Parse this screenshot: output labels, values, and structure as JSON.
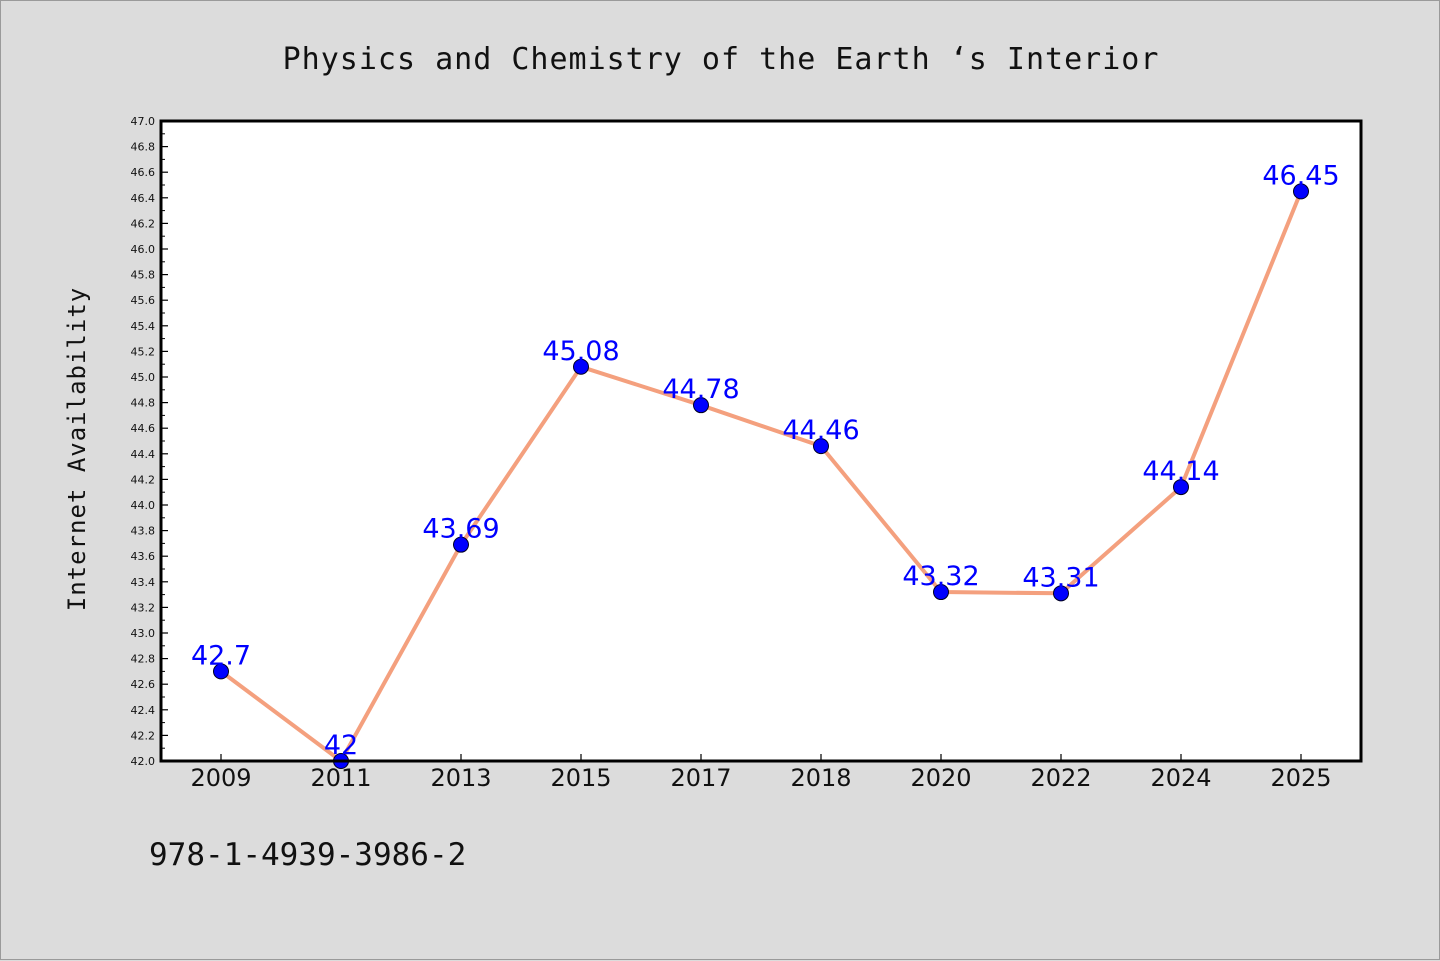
{
  "chart_data": {
    "type": "line",
    "title": "Physics and Chemistry of the Earth ‘s Interior",
    "xlabel": "",
    "ylabel": "Internet Availability",
    "categories": [
      "2009",
      "2011",
      "2013",
      "2015",
      "2017",
      "2018",
      "2020",
      "2022",
      "2024",
      "2025"
    ],
    "series": [
      {
        "values": [
          42.7,
          42,
          43.69,
          45.08,
          44.78,
          44.46,
          43.32,
          43.31,
          44.14,
          46.45
        ],
        "labels": [
          "42.7",
          "42",
          "43.69",
          "45.08",
          "44.78",
          "44.46",
          "43.32",
          "43.31",
          "44.14",
          "46.45"
        ],
        "line_color": "#f4a07e",
        "marker_color": "#0000ff"
      }
    ],
    "ylim": [
      42.0,
      47.0
    ],
    "ytick_step": 0.2,
    "grid": false,
    "legend": "none"
  },
  "footnote": "978-1-4939-3986-2"
}
